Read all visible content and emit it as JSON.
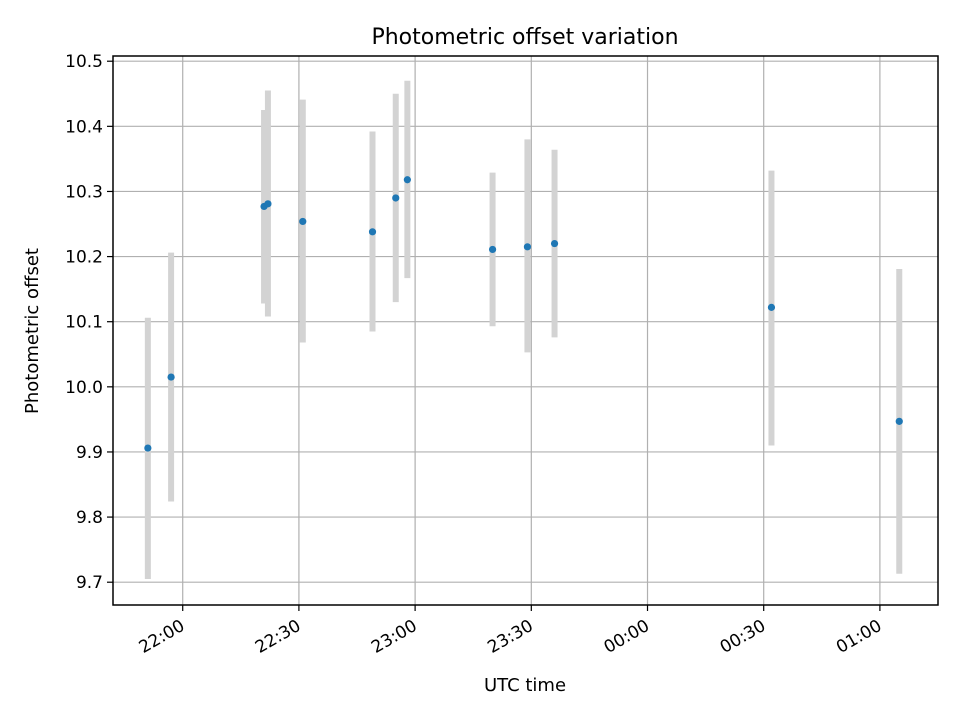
{
  "chart_data": {
    "type": "scatter",
    "title": "Photometric offset variation",
    "xlabel": "UTC time",
    "ylabel": "Photometric offset",
    "x_ticks": [
      "22:00",
      "22:30",
      "23:00",
      "23:30",
      "00:00",
      "00:30",
      "01:00"
    ],
    "y_ticks": [
      "9.7",
      "9.8",
      "9.9",
      "10.0",
      "10.1",
      "10.2",
      "10.3",
      "10.4",
      "10.5"
    ],
    "xlim": [
      "21:42",
      "01:15"
    ],
    "ylim": [
      9.665,
      10.508
    ],
    "grid": true,
    "series": [
      {
        "marker_color": "#1f77b4",
        "errorbar_color": "#d3d3d3",
        "points": [
          {
            "time": "21:51",
            "y": 9.906,
            "ylow": 9.705,
            "yhigh": 10.106
          },
          {
            "time": "21:57",
            "y": 10.015,
            "ylow": 9.824,
            "yhigh": 10.206
          },
          {
            "time": "22:21",
            "y": 10.277,
            "ylow": 10.128,
            "yhigh": 10.425
          },
          {
            "time": "22:22",
            "y": 10.281,
            "ylow": 10.108,
            "yhigh": 10.455
          },
          {
            "time": "22:31",
            "y": 10.254,
            "ylow": 10.068,
            "yhigh": 10.441
          },
          {
            "time": "22:49",
            "y": 10.238,
            "ylow": 10.085,
            "yhigh": 10.392
          },
          {
            "time": "22:55",
            "y": 10.29,
            "ylow": 10.13,
            "yhigh": 10.45
          },
          {
            "time": "22:58",
            "y": 10.318,
            "ylow": 10.167,
            "yhigh": 10.47
          },
          {
            "time": "23:20",
            "y": 10.211,
            "ylow": 10.093,
            "yhigh": 10.329
          },
          {
            "time": "23:29",
            "y": 10.215,
            "ylow": 10.053,
            "yhigh": 10.38
          },
          {
            "time": "23:36",
            "y": 10.22,
            "ylow": 10.076,
            "yhigh": 10.364
          },
          {
            "time": "00:32",
            "y": 10.122,
            "ylow": 9.91,
            "yhigh": 10.332
          },
          {
            "time": "01:05",
            "y": 9.947,
            "ylow": 9.713,
            "yhigh": 10.181
          }
        ]
      }
    ]
  }
}
